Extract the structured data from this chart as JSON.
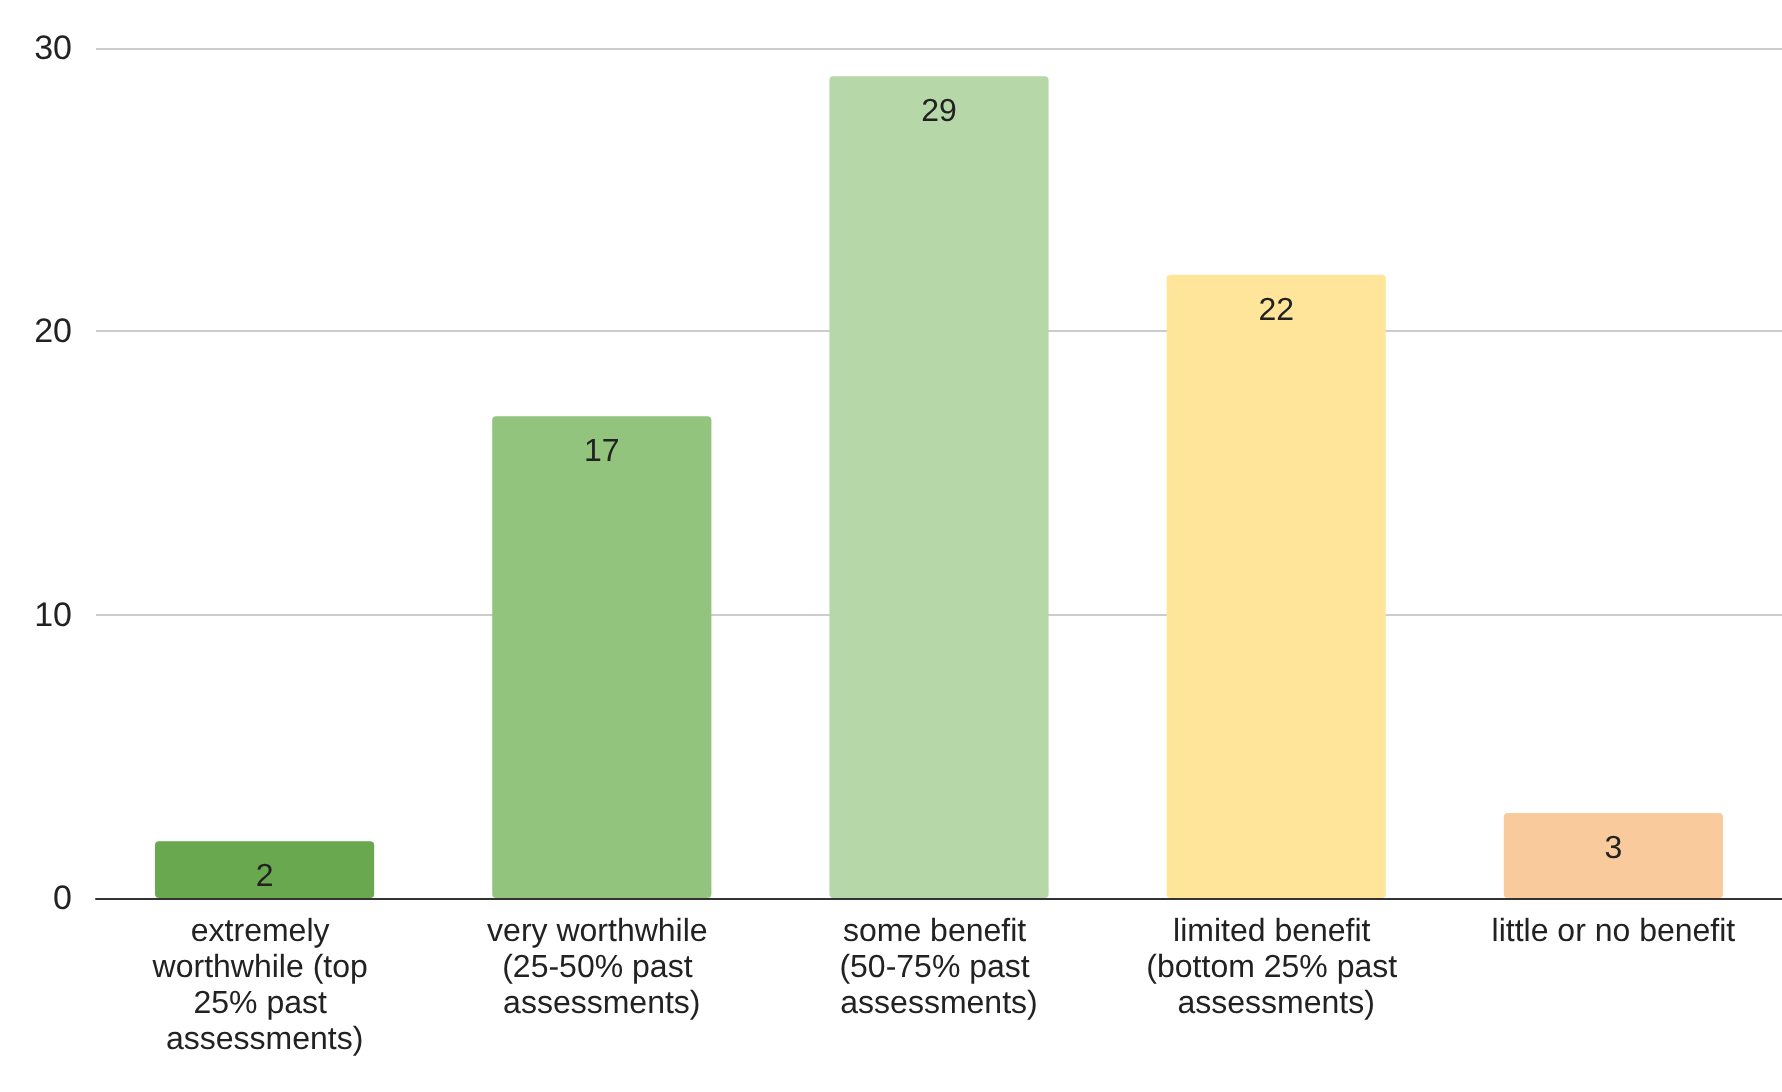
{
  "chart_data": {
    "type": "bar",
    "categories": [
      "extremely worthwhile (top 25% past assessments)",
      "very worthwhile (25-50% past assessments)",
      "some benefit (50-75% past assessments)",
      "limited benefit (bottom 25% past assessments)",
      "little or no benefit"
    ],
    "values": [
      2,
      17,
      29,
      22,
      3
    ],
    "colors": [
      "#6aa84f",
      "#93c47d",
      "#b6d7a8",
      "#ffe599",
      "#f9cb9c"
    ],
    "ylim": [
      0,
      30
    ],
    "yticks": [
      0,
      10,
      20,
      30
    ],
    "grid": "y",
    "data_labels": true
  }
}
